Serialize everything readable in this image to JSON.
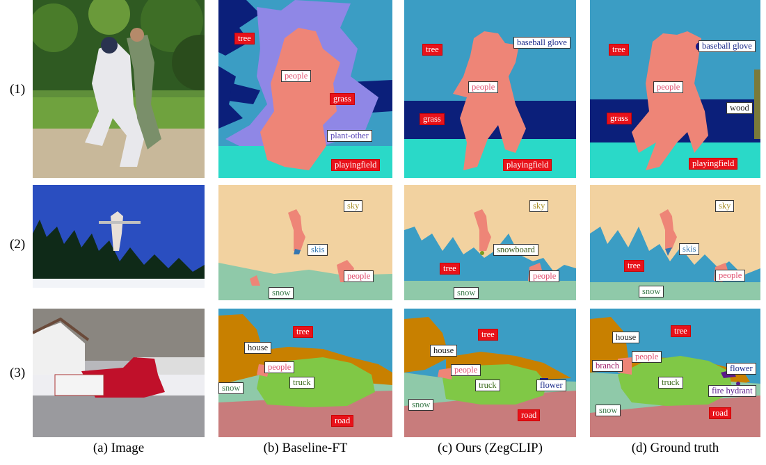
{
  "row_labels": [
    "(1)",
    "(2)",
    "(3)"
  ],
  "captions": [
    "(a) Image",
    "(b) Baseline-FT",
    "(c) Ours (ZegCLIP)",
    "(d) Ground truth"
  ],
  "colors": {
    "tree": "#3b9dc4",
    "grass": "#0b1f7a",
    "people": "#ee8577",
    "playingfield": "#2ad9c8",
    "plant_other": "#8f87e6",
    "sky": "#f2d2a0",
    "snow": "#8fc9a9",
    "skis": "#3577b0",
    "house": "#c88000",
    "truck": "#80c846",
    "road": "#c87c7c",
    "flower": "#1a1a8a",
    "snowboard": "#7a9a20"
  },
  "rows": [
    {
      "b": [
        {
          "text": "tree",
          "style": "red",
          "color": "#ffffff"
        },
        {
          "text": "people",
          "style": "white",
          "color": "#e05070"
        },
        {
          "text": "grass",
          "style": "red",
          "color": "#ffffff"
        },
        {
          "text": "plant-other",
          "style": "white",
          "color": "#5a47b8"
        },
        {
          "text": "playingfield",
          "style": "red",
          "color": "#ffffff"
        }
      ],
      "c": [
        {
          "text": "tree",
          "style": "red",
          "color": "#ffffff"
        },
        {
          "text": "baseball glove",
          "style": "white",
          "color": "#1a2a8a"
        },
        {
          "text": "people",
          "style": "white",
          "color": "#e05070"
        },
        {
          "text": "grass",
          "style": "red",
          "color": "#ffffff"
        },
        {
          "text": "playingfield",
          "style": "red",
          "color": "#ffffff"
        }
      ],
      "d": [
        {
          "text": "tree",
          "style": "red",
          "color": "#ffffff"
        },
        {
          "text": "baseball glove",
          "style": "white",
          "color": "#1a2a8a"
        },
        {
          "text": "people",
          "style": "white",
          "color": "#e05070"
        },
        {
          "text": "wood",
          "style": "white",
          "color": "#222222"
        },
        {
          "text": "grass",
          "style": "red",
          "color": "#ffffff"
        },
        {
          "text": "playingfield",
          "style": "red",
          "color": "#ffffff"
        }
      ]
    },
    {
      "b": [
        {
          "text": "sky",
          "style": "white",
          "color": "#a8902a"
        },
        {
          "text": "skis",
          "style": "white",
          "color": "#3577b0"
        },
        {
          "text": "people",
          "style": "white",
          "color": "#e05070"
        },
        {
          "text": "snow",
          "style": "white",
          "color": "#3a7a4a"
        }
      ],
      "c": [
        {
          "text": "sky",
          "style": "white",
          "color": "#a8902a"
        },
        {
          "text": "snowboard",
          "style": "white",
          "color": "#3a5a1a"
        },
        {
          "text": "tree",
          "style": "red",
          "color": "#ffffff"
        },
        {
          "text": "people",
          "style": "white",
          "color": "#e05070"
        },
        {
          "text": "snow",
          "style": "white",
          "color": "#3a7a4a"
        }
      ],
      "d": [
        {
          "text": "sky",
          "style": "white",
          "color": "#a8902a"
        },
        {
          "text": "skis",
          "style": "white",
          "color": "#3577b0"
        },
        {
          "text": "tree",
          "style": "red",
          "color": "#ffffff"
        },
        {
          "text": "people",
          "style": "white",
          "color": "#e05070"
        },
        {
          "text": "snow",
          "style": "white",
          "color": "#3a7a4a"
        }
      ]
    },
    {
      "b": [
        {
          "text": "tree",
          "style": "red",
          "color": "#ffffff"
        },
        {
          "text": "house",
          "style": "white",
          "color": "#222222"
        },
        {
          "text": "people",
          "style": "white",
          "color": "#e05070"
        },
        {
          "text": "truck",
          "style": "white",
          "color": "#3a6a1a"
        },
        {
          "text": "snow",
          "style": "white",
          "color": "#3a7a4a"
        },
        {
          "text": "road",
          "style": "red",
          "color": "#ffffff"
        }
      ],
      "c": [
        {
          "text": "tree",
          "style": "red",
          "color": "#ffffff"
        },
        {
          "text": "house",
          "style": "white",
          "color": "#222222"
        },
        {
          "text": "people",
          "style": "white",
          "color": "#e05070"
        },
        {
          "text": "truck",
          "style": "white",
          "color": "#3a6a1a"
        },
        {
          "text": "flower",
          "style": "white",
          "color": "#1a2a8a"
        },
        {
          "text": "snow",
          "style": "white",
          "color": "#3a7a4a"
        },
        {
          "text": "road",
          "style": "red",
          "color": "#ffffff"
        }
      ],
      "d": [
        {
          "text": "tree",
          "style": "red",
          "color": "#ffffff"
        },
        {
          "text": "house",
          "style": "white",
          "color": "#222222"
        },
        {
          "text": "branch",
          "style": "white",
          "color": "#a0206a"
        },
        {
          "text": "people",
          "style": "white",
          "color": "#e05070"
        },
        {
          "text": "truck",
          "style": "white",
          "color": "#3a6a1a"
        },
        {
          "text": "flower",
          "style": "white",
          "color": "#1a2a8a"
        },
        {
          "text": "fire hydrant",
          "style": "white",
          "color": "#5a1a8a"
        },
        {
          "text": "snow",
          "style": "white",
          "color": "#3a7a4a"
        },
        {
          "text": "road",
          "style": "red",
          "color": "#ffffff"
        }
      ]
    }
  ]
}
